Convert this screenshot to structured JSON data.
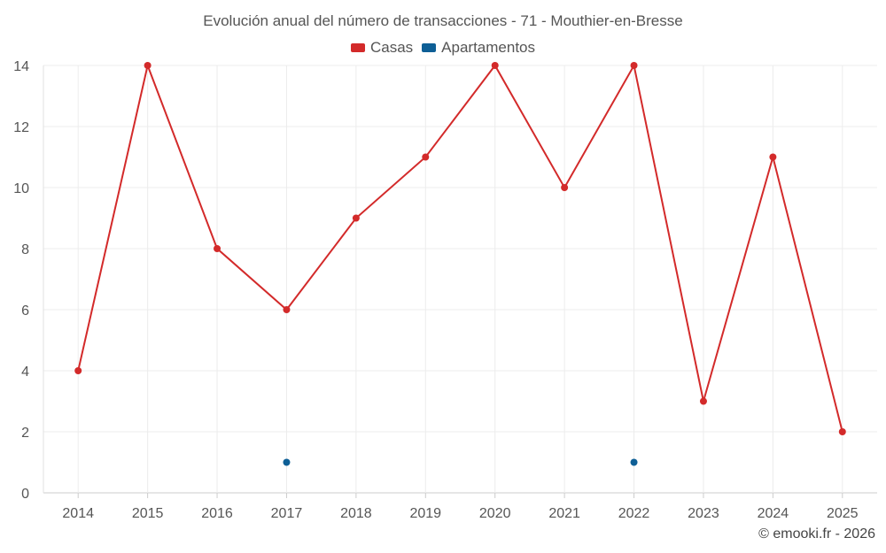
{
  "chart_data": {
    "type": "line",
    "title": "Evolución anual del número de transacciones - 71 - Mouthier-en-Bresse",
    "categories": [
      "2014",
      "2015",
      "2016",
      "2017",
      "2018",
      "2019",
      "2020",
      "2021",
      "2022",
      "2023",
      "2024",
      "2025"
    ],
    "series": [
      {
        "name": "Casas",
        "color": "#d32a2a",
        "values": [
          4,
          14,
          8,
          6,
          9,
          11,
          14,
          10,
          14,
          3,
          11,
          2
        ],
        "line": true
      },
      {
        "name": "Apartamentos",
        "color": "#0e5f96",
        "values": [
          null,
          null,
          null,
          1,
          null,
          null,
          null,
          null,
          1,
          null,
          null,
          null
        ],
        "line": false
      }
    ],
    "ylim": [
      0,
      14
    ],
    "yticks": [
      0,
      2,
      4,
      6,
      8,
      10,
      12,
      14
    ],
    "xlabel": "",
    "ylabel": "",
    "grid": true,
    "legend_position": "top-center"
  },
  "credit": "© emooki.fr - 2026"
}
